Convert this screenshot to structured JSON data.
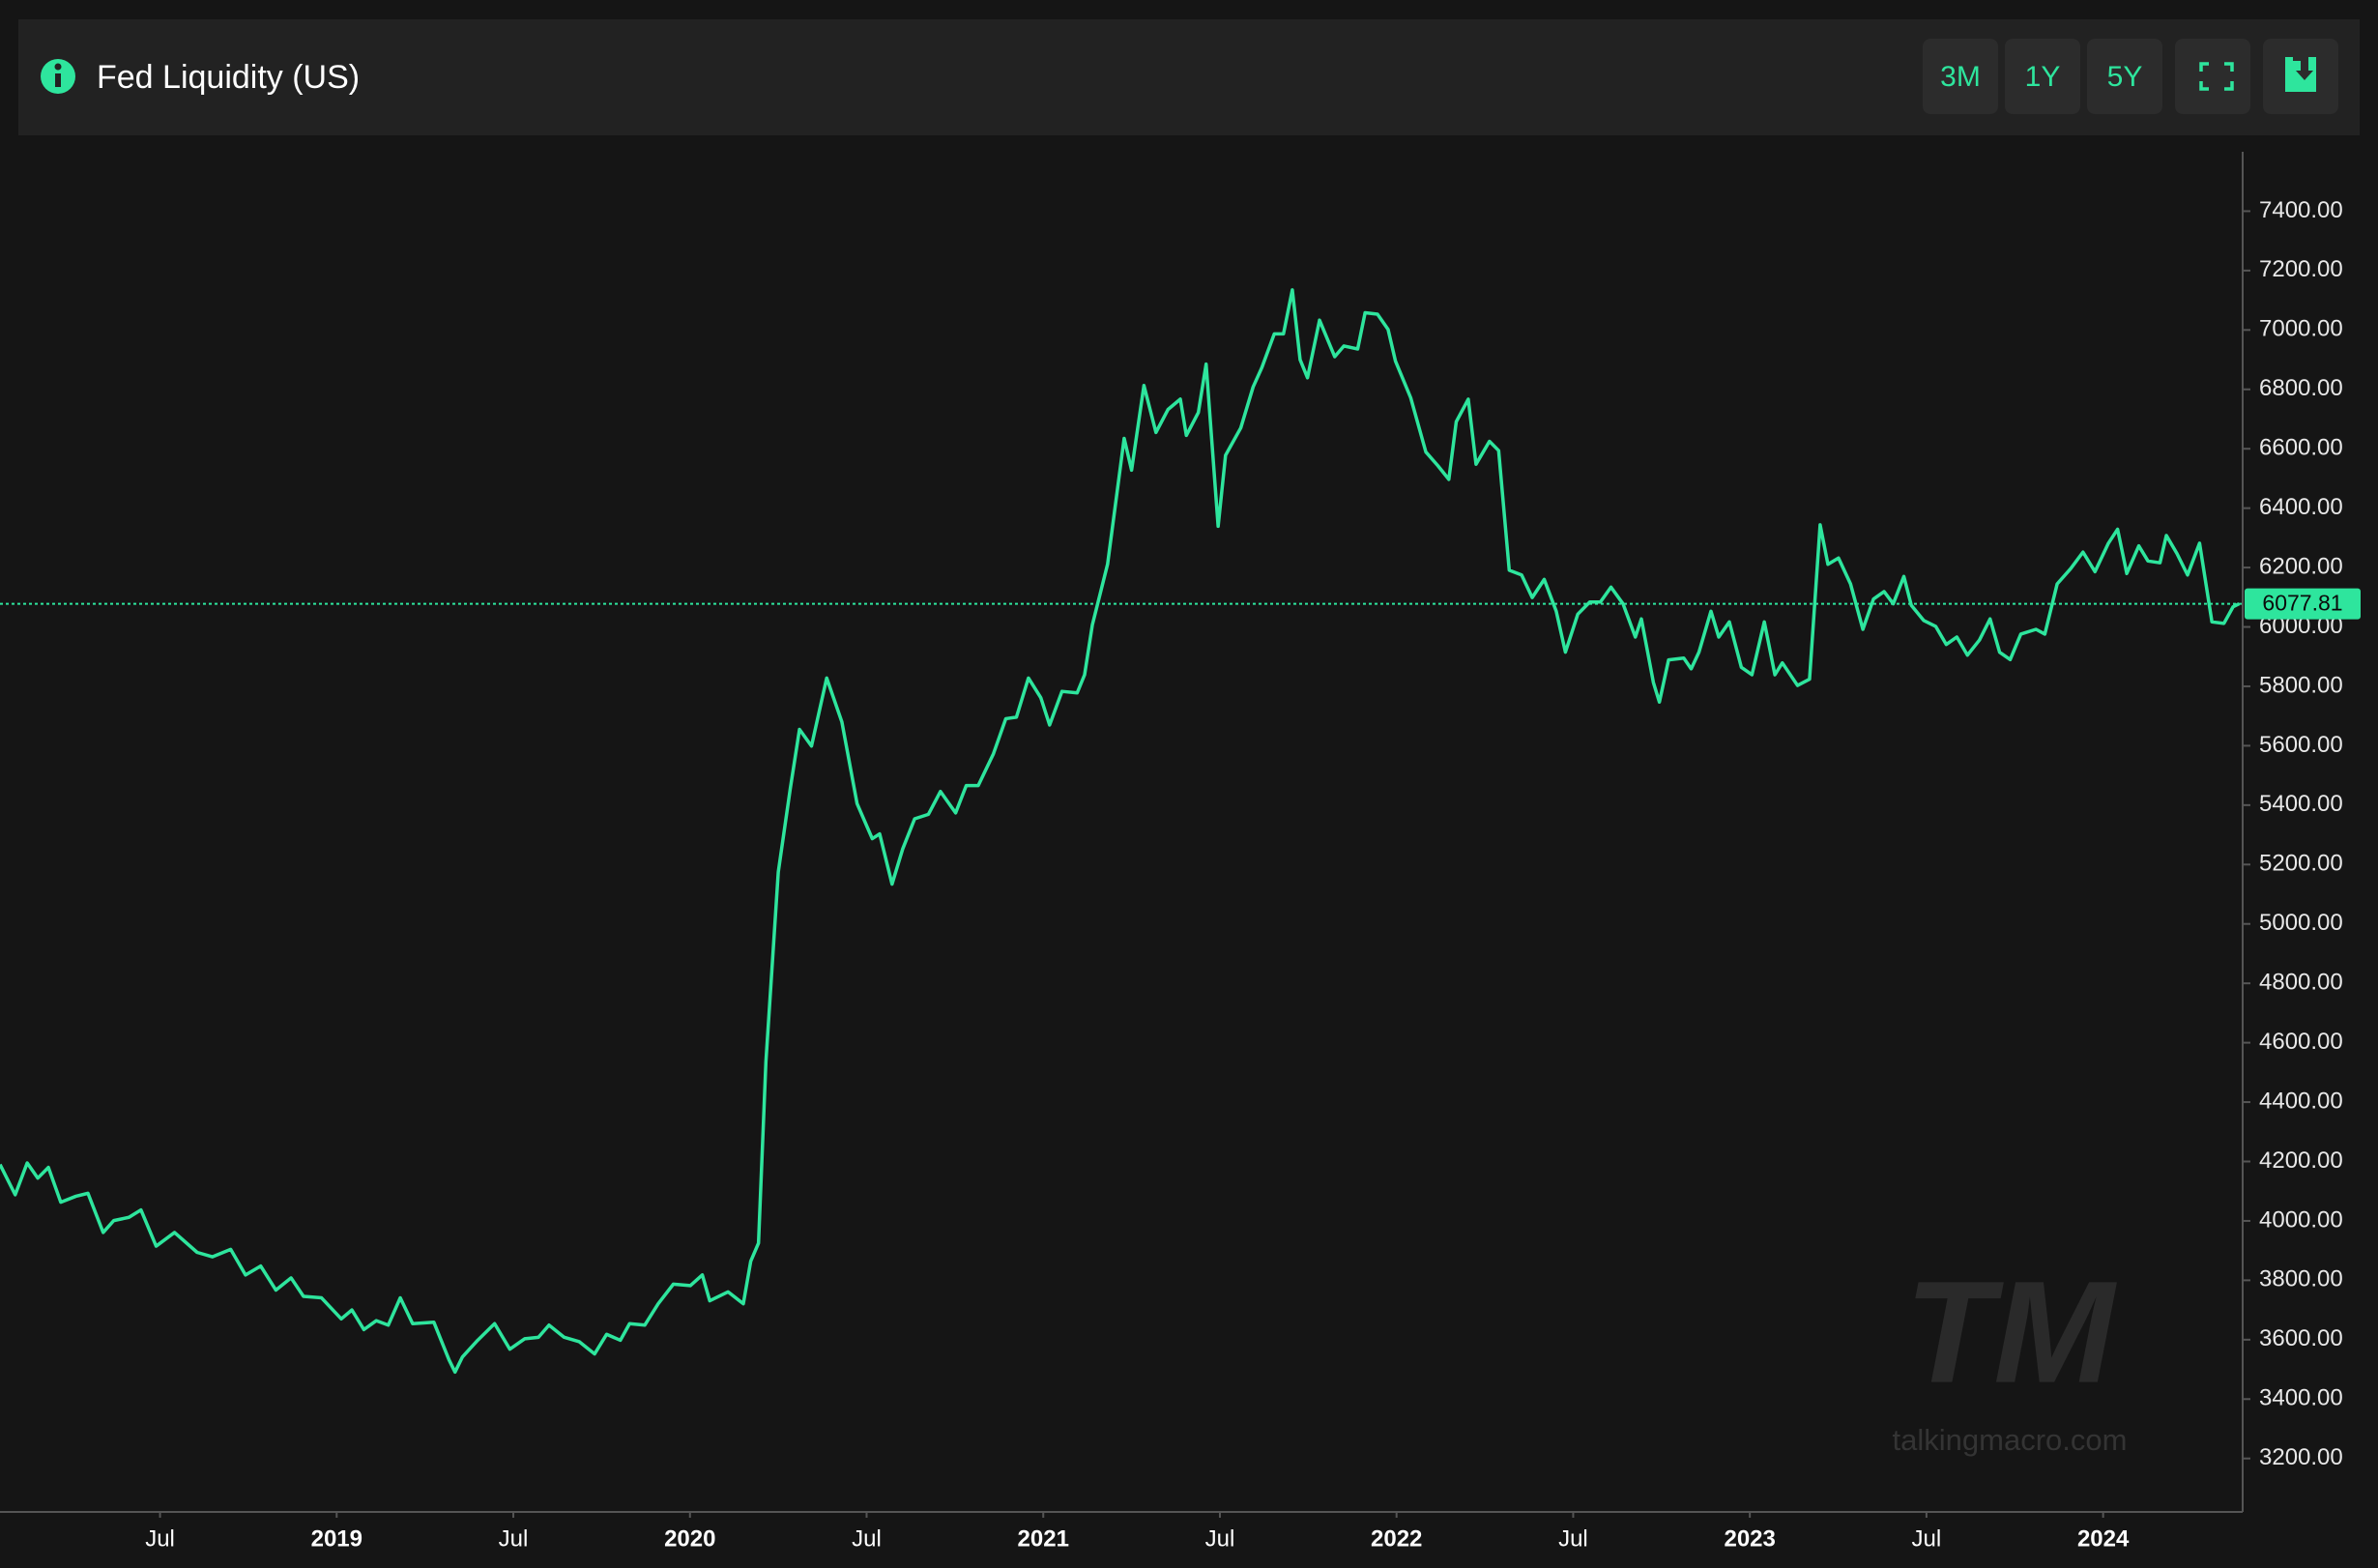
{
  "header": {
    "title": "Fed Liquidity (US)",
    "buttons": [
      "3M",
      "1Y",
      "5Y"
    ]
  },
  "watermark": {
    "logo": "TM",
    "site": "talkingmacro.com"
  },
  "chart_data": {
    "type": "line",
    "color": "#2ee59d",
    "grid": false,
    "x": [
      2018.047,
      2018.09,
      2018.124,
      2018.154,
      2018.184,
      2018.219,
      2018.262,
      2018.296,
      2018.339,
      2018.369,
      2018.412,
      2018.446,
      2018.489,
      2018.541,
      2018.605,
      2018.648,
      2018.7,
      2018.742,
      2018.785,
      2018.828,
      2018.871,
      2018.906,
      2018.957,
      2019.013,
      2019.043,
      2019.077,
      2019.112,
      2019.146,
      2019.18,
      2019.215,
      2019.275,
      2019.318,
      2019.335,
      2019.356,
      2019.399,
      2019.447,
      2019.49,
      2019.532,
      2019.571,
      2019.601,
      2019.644,
      2019.687,
      2019.73,
      2019.764,
      2019.803,
      2019.829,
      2019.872,
      2019.91,
      2019.953,
      2020.001,
      2020.035,
      2020.056,
      2020.108,
      2020.151,
      2020.172,
      2020.194,
      2020.215,
      2020.25,
      2020.284,
      2020.31,
      2020.344,
      2020.387,
      2020.43,
      2020.473,
      2020.516,
      2020.537,
      2020.572,
      2020.602,
      2020.636,
      2020.675,
      2020.709,
      2020.752,
      2020.782,
      2020.816,
      2020.859,
      2020.894,
      2020.924,
      2020.958,
      2020.993,
      2021.018,
      2021.053,
      2021.096,
      2021.117,
      2021.139,
      2021.182,
      2021.203,
      2021.229,
      2021.25,
      2021.285,
      2021.319,
      2021.353,
      2021.388,
      2021.405,
      2021.439,
      2021.461,
      2021.495,
      2021.516,
      2021.559,
      2021.594,
      2021.619,
      2021.654,
      2021.68,
      2021.705,
      2021.727,
      2021.748,
      2021.782,
      2021.825,
      2021.851,
      2021.89,
      2021.911,
      2021.946,
      2021.976,
      2021.997,
      2022.04,
      2022.083,
      2022.117,
      2022.148,
      2022.169,
      2022.203,
      2022.225,
      2022.263,
      2022.289,
      2022.319,
      2022.354,
      2022.384,
      2022.418,
      2022.452,
      2022.478,
      2022.513,
      2022.547,
      2022.577,
      2022.607,
      2022.641,
      2022.676,
      2022.693,
      2022.727,
      2022.744,
      2022.77,
      2022.813,
      2022.834,
      2022.856,
      2022.89,
      2022.912,
      2022.942,
      2022.976,
      2023.006,
      2023.041,
      2023.071,
      2023.092,
      2023.135,
      2023.169,
      2023.199,
      2023.221,
      2023.251,
      2023.285,
      2023.32,
      2023.35,
      2023.38,
      2023.406,
      2023.436,
      2023.457,
      2023.492,
      2023.526,
      2023.556,
      2023.586,
      2023.616,
      2023.65,
      2023.68,
      2023.707,
      2023.737,
      2023.767,
      2023.81,
      2023.835,
      2023.87,
      2023.908,
      2023.943,
      2023.977,
      2024.015,
      2024.041,
      2024.067,
      2024.101,
      2024.127,
      2024.161,
      2024.179,
      2024.209,
      2024.239,
      2024.273,
      2024.308,
      2024.342,
      2024.368,
      2024.385
    ],
    "values": [
      4190,
      4088,
      4195,
      4144,
      4180,
      4063,
      4083,
      4093,
      3961,
      4001,
      4012,
      4037,
      3915,
      3961,
      3894,
      3879,
      3904,
      3818,
      3848,
      3767,
      3808,
      3746,
      3741,
      3670,
      3700,
      3634,
      3664,
      3649,
      3741,
      3654,
      3659,
      3532,
      3491,
      3542,
      3598,
      3654,
      3568,
      3603,
      3608,
      3649,
      3608,
      3593,
      3552,
      3618,
      3598,
      3654,
      3649,
      3721,
      3787,
      3782,
      3818,
      3731,
      3761,
      3721,
      3864,
      3925,
      4537,
      5175,
      5456,
      5655,
      5599,
      5828,
      5680,
      5405,
      5287,
      5303,
      5134,
      5252,
      5354,
      5369,
      5446,
      5374,
      5466,
      5466,
      5573,
      5691,
      5696,
      5828,
      5762,
      5670,
      5783,
      5778,
      5839,
      6007,
      6211,
      6400,
      6635,
      6528,
      6813,
      6655,
      6732,
      6767,
      6645,
      6722,
      6885,
      6339,
      6578,
      6670,
      6808,
      6874,
      6987,
      6987,
      7135,
      6900,
      6839,
      7033,
      6910,
      6946,
      6936,
      7058,
      7053,
      7002,
      6895,
      6772,
      6589,
      6543,
      6497,
      6691,
      6767,
      6548,
      6625,
      6594,
      6191,
      6175,
      6099,
      6160,
      6053,
      5915,
      6043,
      6084,
      6084,
      6134,
      6078,
      5966,
      6027,
      5813,
      5747,
      5889,
      5895,
      5859,
      5915,
      6053,
      5966,
      6017,
      5864,
      5839,
      6017,
      5839,
      5879,
      5803,
      5824,
      6344,
      6211,
      6232,
      6145,
      5992,
      6094,
      6119,
      6078,
      6170,
      6073,
      6022,
      6002,
      5941,
      5966,
      5905,
      5956,
      6027,
      5915,
      5890,
      5976,
      5992,
      5976,
      6145,
      6196,
      6252,
      6186,
      6282,
      6329,
      6180,
      6273,
      6222,
      6216,
      6308,
      6247,
      6175,
      6282,
      6017,
      6012,
      6068,
      6078
    ],
    "last_value": 6077.81,
    "xlim": [
      2018.047,
      2024.395
    ],
    "xticks": [
      {
        "value": 2018.5,
        "label": "Jul"
      },
      2019,
      {
        "value": 2019.5,
        "label": "Jul"
      },
      2020,
      {
        "value": 2020.5,
        "label": "Jul"
      },
      2021,
      {
        "value": 2021.5,
        "label": "Jul"
      },
      2022,
      {
        "value": 2022.5,
        "label": "Jul"
      },
      2023,
      {
        "value": 2023.5,
        "label": "Jul"
      },
      2024
    ],
    "ylim": [
      3020,
      7600
    ],
    "yticks": [
      {
        "value": 3200,
        "label": "3200.00"
      },
      {
        "value": 3400,
        "label": "3400.00"
      },
      {
        "value": 3600,
        "label": "3600.00"
      },
      {
        "value": 3800,
        "label": "3800.00"
      },
      {
        "value": 4000,
        "label": "4000.00"
      },
      {
        "value": 4200,
        "label": "4200.00"
      },
      {
        "value": 4400,
        "label": "4400.00"
      },
      {
        "value": 4600,
        "label": "4600.00"
      },
      {
        "value": 4800,
        "label": "4800.00"
      },
      {
        "value": 5000,
        "label": "5000.00"
      },
      {
        "value": 5200,
        "label": "5200.00"
      },
      {
        "value": 5400,
        "label": "5400.00"
      },
      {
        "value": 5600,
        "label": "5600.00"
      },
      {
        "value": 5800,
        "label": "5800.00"
      },
      {
        "value": 6000,
        "label": "6000.00"
      },
      {
        "value": 6200,
        "label": "6200.00"
      },
      {
        "value": 6400,
        "label": "6400.00"
      },
      {
        "value": 6600,
        "label": "6600.00"
      },
      {
        "value": 6800,
        "label": "6800.00"
      },
      {
        "value": 7000,
        "label": "7000.00"
      },
      {
        "value": 7200,
        "label": "7200.00"
      },
      {
        "value": 7400,
        "label": "7400.00"
      }
    ]
  }
}
